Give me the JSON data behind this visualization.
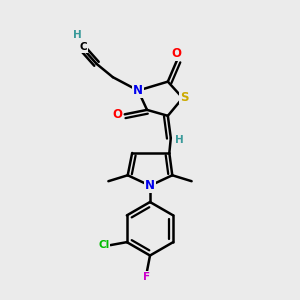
{
  "bg_color": "#ebebeb",
  "atom_colors": {
    "C": "#000000",
    "H": "#3a9a9a",
    "N": "#0000ee",
    "O": "#ff0000",
    "S": "#ccaa00",
    "Cl": "#00bb00",
    "F": "#cc00cc"
  },
  "bond_color": "#000000",
  "bond_width": 1.8,
  "dbo": 0.013,
  "font_size": 8.5,
  "fig_size": [
    3.0,
    3.0
  ],
  "dpi": 100
}
